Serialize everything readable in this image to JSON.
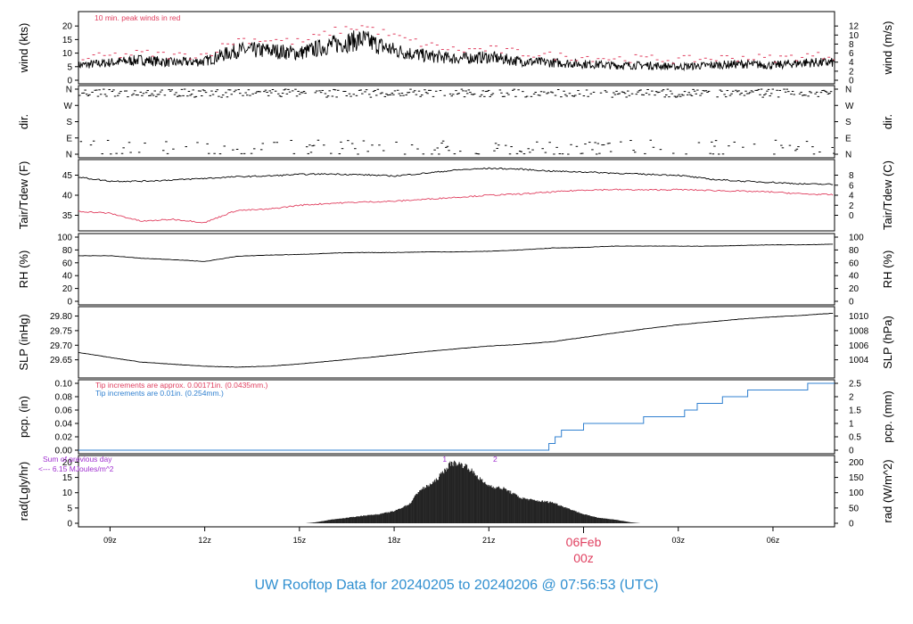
{
  "footer": {
    "title": "UW Rooftop Data for 20240205  to  20240206 @ 07:56:53  (UTC)"
  },
  "time_axis": {
    "tick_labels": [
      "09z",
      "12z",
      "15z",
      "18z",
      "21z",
      "03z",
      "06z"
    ],
    "tick_hours": [
      9,
      12,
      15,
      18,
      21,
      27,
      30
    ],
    "day_label": "06Feb",
    "day_sublabel": "00z",
    "day_hour": 24,
    "start_hour": 8.0,
    "end_hour": 31.95
  },
  "colors": {
    "line": "#000000",
    "accent_red": "#e04060",
    "accent_blue": "#3080d0",
    "purple": "#a030d0",
    "title_blue": "#2f8fd0"
  },
  "chart_data": [
    {
      "id": "wind",
      "type": "line",
      "ylabel": "wind (kts)",
      "ylabel_right": "wind (m/s)",
      "ylim": [
        0,
        24
      ],
      "yticks": [
        0,
        5,
        10,
        15,
        20
      ],
      "yticks_right": [
        0,
        2,
        4,
        6,
        8,
        10,
        12
      ],
      "annotation": "10 min. peak winds in red",
      "series": [
        {
          "x": [
            8,
            9,
            10,
            11,
            12,
            13,
            14,
            15,
            16,
            17,
            18,
            19,
            20,
            21,
            22,
            23,
            24,
            25,
            26,
            27,
            28,
            29,
            30,
            31,
            31.95
          ],
          "y": [
            5.5,
            6.5,
            7.5,
            6.5,
            7,
            11,
            11,
            10,
            13,
            15,
            11,
            9,
            8,
            8.5,
            7,
            6.5,
            6,
            5.5,
            5.5,
            5,
            5.5,
            6,
            5.5,
            6.5,
            6.5
          ]
        },
        {
          "name": "peak",
          "x": [
            8,
            9,
            10,
            11,
            12,
            13,
            14,
            15,
            16,
            17,
            18,
            19,
            20,
            21,
            22,
            23,
            24,
            25,
            26,
            27,
            28,
            29,
            30,
            31,
            31.95
          ],
          "y": [
            8,
            9,
            10,
            9,
            9.5,
            15,
            15,
            14,
            18,
            20,
            16,
            13,
            11,
            11.5,
            10,
            9,
            8.5,
            8,
            8,
            7.5,
            8,
            8.5,
            8,
            9,
            9
          ]
        }
      ]
    },
    {
      "id": "dir",
      "type": "scatter",
      "ylabel": "dir.",
      "ylabel_right": "dir.",
      "ylim": [
        0,
        360
      ],
      "yticks": [
        0,
        90,
        180,
        270,
        360
      ],
      "yticklabels": [
        "N",
        "E",
        "S",
        "W",
        "N"
      ],
      "series": [
        {
          "name": "direction",
          "y_center": 340,
          "y_spread": 25,
          "x_range": [
            8,
            31.95
          ]
        }
      ]
    },
    {
      "id": "temp",
      "type": "line",
      "ylabel": "Tair/Tdew (F)",
      "ylabel_right": "Tair/Tdew (C)",
      "ylim": [
        32,
        48
      ],
      "yticks": [
        35,
        40,
        45
      ],
      "yticks_right": [
        0,
        2,
        4,
        6,
        8
      ],
      "series": [
        {
          "name": "Tair",
          "x": [
            8,
            9,
            10,
            11,
            12,
            13,
            14,
            15,
            16,
            17,
            18,
            19,
            20,
            21,
            22,
            23,
            24,
            25,
            26,
            27,
            28,
            29,
            30,
            31,
            31.95
          ],
          "y": [
            44.5,
            43.5,
            43.5,
            43.8,
            44.2,
            44.6,
            44.8,
            45.2,
            45.3,
            45.1,
            44.8,
            45.5,
            46.3,
            46.7,
            46.5,
            46,
            45.8,
            45.5,
            45.2,
            45,
            44,
            43.5,
            43.2,
            42.8,
            42.7
          ]
        },
        {
          "name": "Tdew",
          "x": [
            8,
            9,
            10,
            11,
            12,
            13,
            14,
            15,
            16,
            17,
            18,
            19,
            20,
            21,
            22,
            23,
            24,
            25,
            26,
            27,
            28,
            29,
            30,
            31,
            31.95
          ],
          "y": [
            36,
            35.5,
            33.5,
            34,
            33.2,
            36.2,
            36.5,
            37.5,
            38,
            38.3,
            38.5,
            39,
            39.5,
            40,
            40.3,
            40.8,
            41.3,
            41.4,
            41.3,
            41.4,
            41.2,
            41,
            40.8,
            40.3,
            40.1
          ]
        }
      ]
    },
    {
      "id": "rh",
      "type": "line",
      "ylabel": "RH (%)",
      "ylabel_right": "RH (%)",
      "ylim": [
        0,
        100
      ],
      "yticks": [
        0,
        20,
        40,
        60,
        80,
        100
      ],
      "yticks_right": [
        0,
        20,
        40,
        60,
        80,
        100
      ],
      "series": [
        {
          "x": [
            8,
            9,
            10,
            11,
            12,
            13,
            14,
            15,
            16,
            17,
            18,
            19,
            20,
            21,
            22,
            23,
            24,
            25,
            26,
            27,
            28,
            29,
            30,
            31,
            31.95
          ],
          "y": [
            71,
            71,
            67,
            65,
            62,
            70,
            72,
            73,
            75,
            76,
            76,
            77,
            77,
            78,
            80,
            83,
            84,
            86,
            86,
            86,
            86,
            87,
            88,
            88,
            89
          ]
        }
      ]
    },
    {
      "id": "slp",
      "type": "line",
      "ylabel": "SLP (inHg)",
      "ylabel_right": "SLP (hPa)",
      "ylim": [
        29.6,
        29.82
      ],
      "yticks": [
        29.65,
        29.7,
        29.75,
        29.8
      ],
      "yticklabels": [
        "29.65",
        "29.70",
        "29.75",
        "29.80"
      ],
      "yticks_right": [
        1004,
        1006,
        1008,
        1010
      ],
      "series": [
        {
          "x": [
            8,
            9,
            10,
            11,
            12,
            13,
            14,
            15,
            16,
            17,
            18,
            19,
            20,
            21,
            22,
            23,
            24,
            25,
            26,
            27,
            28,
            29,
            30,
            31,
            31.95
          ],
          "y": [
            29.675,
            29.658,
            29.642,
            29.635,
            29.628,
            29.625,
            29.628,
            29.636,
            29.646,
            29.656,
            29.667,
            29.678,
            29.688,
            29.697,
            29.703,
            29.712,
            29.727,
            29.742,
            29.757,
            29.77,
            29.78,
            29.79,
            29.797,
            29.803,
            29.81
          ]
        }
      ]
    },
    {
      "id": "pcp",
      "type": "line",
      "ylabel": "pcp. (in)",
      "ylabel_right": "pcp. (mm)",
      "ylim": [
        0,
        0.1
      ],
      "yticks": [
        0,
        0.02,
        0.04,
        0.06,
        0.08,
        0.1
      ],
      "yticklabels": [
        "0.00",
        "0.02",
        "0.04",
        "0.06",
        "0.08",
        "0.10"
      ],
      "yticks_right": [
        0,
        0.5,
        1,
        1.5,
        2,
        2.5
      ],
      "annotations": [
        "Tip increments are approx. 0.00171in. (0.0435mm.)",
        "Tip increments are 0.01in. (0.254mm.)"
      ],
      "series": [
        {
          "name": "cumulative",
          "x": [
            8,
            22.9,
            22.9,
            23.1,
            23.1,
            23.3,
            23.3,
            24,
            24,
            25.9,
            25.9,
            27.2,
            27.2,
            27.6,
            27.6,
            28.4,
            28.4,
            29.2,
            29.2,
            31.1,
            31.1,
            31.95
          ],
          "y": [
            0,
            0,
            0.01,
            0.01,
            0.02,
            0.02,
            0.03,
            0.03,
            0.04,
            0.04,
            0.05,
            0.05,
            0.06,
            0.06,
            0.07,
            0.07,
            0.08,
            0.08,
            0.09,
            0.09,
            0.1,
            0.1
          ]
        }
      ]
    },
    {
      "id": "rad",
      "type": "area",
      "ylabel": "rad(Lgly/hr)",
      "ylabel_right": "rad (W/m^2)",
      "ylim": [
        0,
        21
      ],
      "yticks": [
        0,
        5,
        10,
        15,
        20
      ],
      "yticks_right": [
        0,
        50,
        100,
        150,
        200
      ],
      "annotations": [
        "Sum of previous day",
        "<--- 6.15 MJoules/m^2"
      ],
      "markers": [
        {
          "label": "1",
          "x": 19.6
        },
        {
          "label": "2",
          "x": 21.2
        }
      ],
      "series": [
        {
          "x": [
            15.2,
            15.5,
            16,
            16.5,
            17,
            17.5,
            18,
            18.5,
            18.8,
            19,
            19.3,
            19.5,
            19.8,
            20,
            20.3,
            20.6,
            20.9,
            21.2,
            21.5,
            22,
            22.5,
            23,
            23.5,
            24,
            24.5,
            25,
            25.5,
            25.8
          ],
          "y": [
            0,
            0.3,
            1.2,
            1.8,
            2.5,
            3,
            4,
            6.5,
            11,
            12,
            14,
            16.5,
            20,
            20,
            19,
            16,
            13,
            12,
            11.5,
            8.5,
            7.5,
            7,
            5,
            3,
            1.8,
            1.2,
            0.3,
            0
          ]
        }
      ]
    }
  ]
}
